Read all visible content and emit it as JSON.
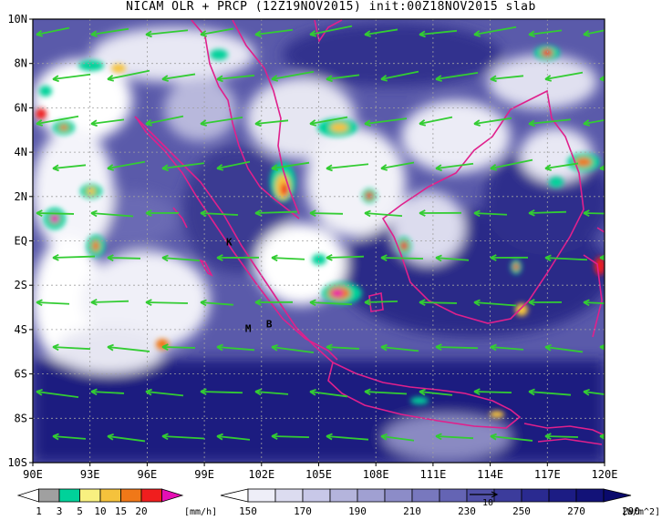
{
  "title": "NICAM OLR + PRCP (12Z19NOV2015) init:00Z18NOV2015 slab",
  "map": {
    "lon_range": [
      90,
      120
    ],
    "lat_range": [
      -10,
      10
    ],
    "lon_ticks": [
      "90E",
      "93E",
      "96E",
      "99E",
      "102E",
      "105E",
      "108E",
      "111E",
      "114E",
      "117E",
      "120E"
    ],
    "lat_ticks": [
      "10N",
      "8N",
      "6N",
      "4N",
      "2N",
      "EQ",
      "2S",
      "4S",
      "6S",
      "8S",
      "10S"
    ],
    "station_labels": [
      {
        "text": "K",
        "lon": 100.3,
        "lat": -0.2
      },
      {
        "text": "M",
        "lon": 101.3,
        "lat": -4.1
      },
      {
        "text": "B",
        "lon": 102.4,
        "lat": -3.9
      }
    ],
    "colors": {
      "olr_dark": "#1a1a7a",
      "coastline": "#e0208c",
      "wind_vector": "#33cc33",
      "grid": "#a0a0a0"
    }
  },
  "precip_bar": {
    "labels": [
      "1",
      "3",
      "5",
      "10",
      "15",
      "20"
    ],
    "unit": "[mm/h]",
    "colors": [
      "#ffffff",
      "#a0a0a0",
      "#00d29a",
      "#f8f080",
      "#f5c23c",
      "#f07818",
      "#f01e1e",
      "#e60fb4"
    ]
  },
  "olr_bar": {
    "labels": [
      "150",
      "170",
      "190",
      "210",
      "230",
      "250",
      "270",
      "290"
    ],
    "unit": "[W/m^2]",
    "vector_label": "10",
    "colors": [
      "#ffffff",
      "#eeeef8",
      "#dcdcf0",
      "#c8c8e8",
      "#b4b4dc",
      "#a0a0d2",
      "#8c8cc8",
      "#7878be",
      "#6464b4",
      "#5050a8",
      "#3c3c9c",
      "#2a2a90",
      "#1c1c84",
      "#121278",
      "#0a0a6c"
    ]
  }
}
